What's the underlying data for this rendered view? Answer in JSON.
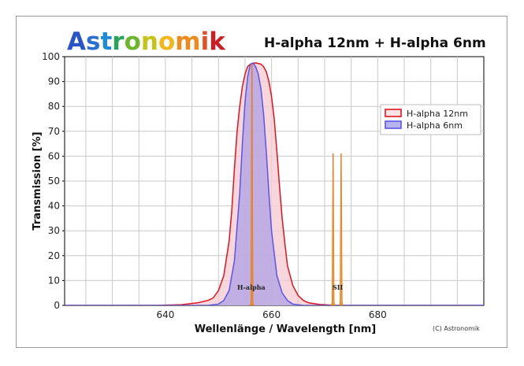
{
  "chart_data": {
    "type": "area",
    "brand": "Astronomik",
    "title": "H-alpha 12nm + H-alpha 6nm",
    "xlabel": "Wellenlänge / Wavelength [nm]",
    "ylabel": "Transmission [%]",
    "xlim": [
      621,
      700
    ],
    "ylim": [
      0,
      100
    ],
    "x_ticks": [
      640,
      660,
      680
    ],
    "y_ticks": [
      0,
      10,
      20,
      30,
      40,
      50,
      60,
      70,
      80,
      90,
      100
    ],
    "grid": true,
    "legend_position": "right",
    "series": [
      {
        "name": "H-alpha 12nm",
        "color": "#e0141e",
        "fill": "#f4c9cf",
        "x": [
          621,
          638,
          643,
          646,
          648,
          649,
          650,
          651,
          652,
          652.5,
          653,
          653.5,
          654,
          654.5,
          655,
          655.5,
          656,
          657,
          658,
          658.5,
          659,
          659.5,
          660,
          660.5,
          661,
          661.5,
          662,
          662.5,
          663,
          664,
          665,
          666,
          667,
          669,
          672,
          700
        ],
        "y": [
          0,
          0,
          0.3,
          1,
          2,
          3,
          6,
          12,
          26,
          38,
          55,
          70,
          80,
          88,
          93,
          96,
          97,
          97.5,
          97,
          96,
          94,
          90,
          84,
          75,
          62,
          48,
          35,
          25,
          16,
          8,
          4,
          2,
          1,
          0.4,
          0,
          0
        ]
      },
      {
        "name": "H-alpha 6nm",
        "color": "#5a55e6",
        "fill": "#b7a7e3",
        "x": [
          621,
          648,
          650,
          651,
          652,
          653,
          654,
          654.5,
          655,
          655.5,
          656,
          656.5,
          657,
          657.5,
          658,
          658.5,
          659,
          659.5,
          660,
          661,
          662,
          663,
          664,
          666,
          700
        ],
        "y": [
          0,
          0,
          0.5,
          2,
          6,
          18,
          45,
          65,
          82,
          92,
          97,
          97.5,
          96,
          93,
          87,
          77,
          62,
          45,
          30,
          12,
          5,
          2,
          0.5,
          0,
          0
        ]
      }
    ],
    "emission_lines": [
      {
        "label": "H-alpha",
        "wavelength": 656.3,
        "peak": 97,
        "color": "#f08a18"
      },
      {
        "label": "SII",
        "wavelength": 671.6,
        "peak": 61,
        "color": "#f08a18"
      },
      {
        "label": "SII",
        "wavelength": 673.1,
        "peak": 61,
        "color": "#f08a18"
      }
    ],
    "annotations": [
      "H-alpha",
      "SII"
    ],
    "copyright": "(C) Astronomik"
  }
}
